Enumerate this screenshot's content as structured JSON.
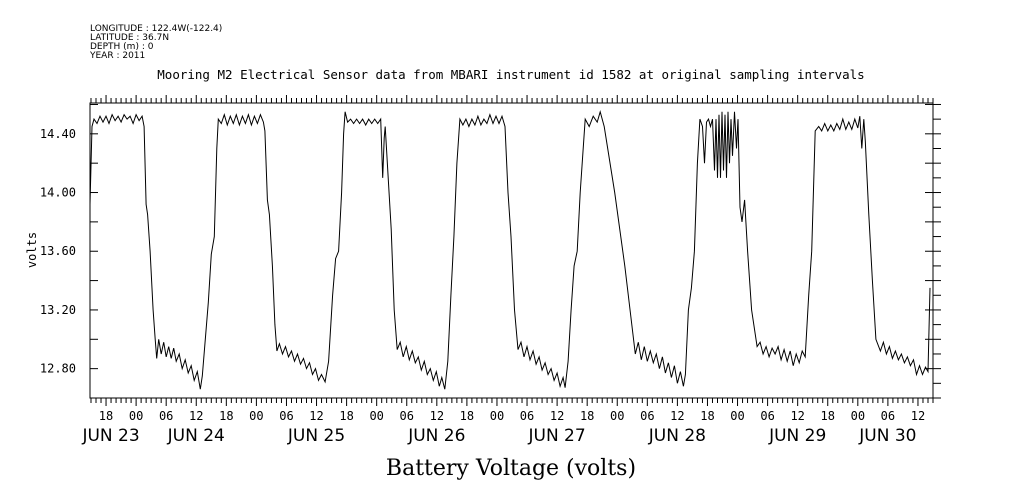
{
  "header": {
    "lines": [
      "LONGITUDE : 122.4W(-122.4)",
      "LATITUDE : 36.7N",
      "DEPTH (m) : 0",
      "YEAR : 2011"
    ]
  },
  "chart_data": {
    "type": "line",
    "title": "Mooring M2 Electrical Sensor data from MBARI instrument id 1582 at original sampling intervals",
    "xlabel": "Battery Voltage (volts)",
    "ylabel": "volts",
    "x_units": "hours since JUN 23 00:00 2011",
    "xlim": [
      14.8,
      183.0
    ],
    "ylim": [
      12.6,
      14.61
    ],
    "y_ticks": [
      12.8,
      13.2,
      13.6,
      14.0,
      14.4
    ],
    "y_tick_labels": [
      "12.80",
      "13.20",
      "13.60",
      "14.00",
      "14.40"
    ],
    "x_hour_labels": [
      "18",
      "00",
      "06",
      "12"
    ],
    "date_labels": [
      {
        "label": "JUN 23",
        "h": 19
      },
      {
        "label": "JUN 24",
        "h": 36
      },
      {
        "label": "JUN 25",
        "h": 60
      },
      {
        "label": "JUN 26",
        "h": 84
      },
      {
        "label": "JUN 27",
        "h": 108
      },
      {
        "label": "JUN 28",
        "h": 132
      },
      {
        "label": "JUN 29",
        "h": 156
      },
      {
        "label": "JUN 30",
        "h": 174
      }
    ],
    "series": [
      {
        "name": "Battery Voltage",
        "points": [
          [
            14.8,
            13.92
          ],
          [
            15.2,
            14.45
          ],
          [
            15.6,
            14.5
          ],
          [
            16.2,
            14.47
          ],
          [
            16.8,
            14.52
          ],
          [
            17.4,
            14.48
          ],
          [
            18,
            14.52
          ],
          [
            18.6,
            14.47
          ],
          [
            19.2,
            14.53
          ],
          [
            19.8,
            14.49
          ],
          [
            20.4,
            14.52
          ],
          [
            21,
            14.48
          ],
          [
            21.6,
            14.53
          ],
          [
            22.2,
            14.5
          ],
          [
            22.8,
            14.52
          ],
          [
            23.4,
            14.47
          ],
          [
            24,
            14.53
          ],
          [
            24.6,
            14.49
          ],
          [
            25.2,
            14.52
          ],
          [
            25.6,
            14.45
          ],
          [
            26.0,
            13.92
          ],
          [
            26.3,
            13.85
          ],
          [
            26.8,
            13.6
          ],
          [
            27.4,
            13.2
          ],
          [
            27.8,
            13.0
          ],
          [
            28.1,
            12.87
          ],
          [
            28.5,
            13.0
          ],
          [
            29,
            12.9
          ],
          [
            29.5,
            12.98
          ],
          [
            30,
            12.88
          ],
          [
            30.5,
            12.95
          ],
          [
            31,
            12.87
          ],
          [
            31.5,
            12.94
          ],
          [
            32,
            12.85
          ],
          [
            32.6,
            12.9
          ],
          [
            33.2,
            12.8
          ],
          [
            33.8,
            12.86
          ],
          [
            34.4,
            12.77
          ],
          [
            35,
            12.82
          ],
          [
            35.6,
            12.72
          ],
          [
            36.2,
            12.78
          ],
          [
            36.8,
            12.66
          ],
          [
            37.2,
            12.75
          ],
          [
            37.8,
            13.0
          ],
          [
            38.4,
            13.25
          ],
          [
            39.0,
            13.58
          ],
          [
            39.6,
            13.7
          ],
          [
            40.1,
            14.3
          ],
          [
            40.4,
            14.5
          ],
          [
            41,
            14.47
          ],
          [
            41.6,
            14.53
          ],
          [
            42.2,
            14.46
          ],
          [
            42.8,
            14.52
          ],
          [
            43.4,
            14.47
          ],
          [
            44,
            14.53
          ],
          [
            44.6,
            14.46
          ],
          [
            45.2,
            14.52
          ],
          [
            45.8,
            14.47
          ],
          [
            46.4,
            14.53
          ],
          [
            47,
            14.46
          ],
          [
            47.6,
            14.52
          ],
          [
            48.2,
            14.47
          ],
          [
            48.8,
            14.53
          ],
          [
            49.4,
            14.48
          ],
          [
            49.7,
            14.42
          ],
          [
            50.2,
            13.95
          ],
          [
            50.6,
            13.85
          ],
          [
            51.2,
            13.5
          ],
          [
            51.7,
            13.1
          ],
          [
            52.1,
            12.92
          ],
          [
            52.6,
            12.97
          ],
          [
            53.2,
            12.9
          ],
          [
            53.8,
            12.95
          ],
          [
            54.4,
            12.88
          ],
          [
            55,
            12.92
          ],
          [
            55.6,
            12.85
          ],
          [
            56.2,
            12.9
          ],
          [
            56.8,
            12.83
          ],
          [
            57.4,
            12.87
          ],
          [
            58,
            12.8
          ],
          [
            58.6,
            12.84
          ],
          [
            59.2,
            12.76
          ],
          [
            59.8,
            12.8
          ],
          [
            60.4,
            12.72
          ],
          [
            61,
            12.76
          ],
          [
            61.7,
            12.71
          ],
          [
            62.4,
            12.85
          ],
          [
            63.2,
            13.3
          ],
          [
            63.8,
            13.55
          ],
          [
            64.4,
            13.6
          ],
          [
            65,
            14.0
          ],
          [
            65.4,
            14.4
          ],
          [
            65.7,
            14.55
          ],
          [
            66.2,
            14.48
          ],
          [
            66.8,
            14.5
          ],
          [
            67.4,
            14.47
          ],
          [
            68,
            14.5
          ],
          [
            68.6,
            14.47
          ],
          [
            69.2,
            14.5
          ],
          [
            69.8,
            14.46
          ],
          [
            70.4,
            14.5
          ],
          [
            71,
            14.47
          ],
          [
            71.6,
            14.5
          ],
          [
            72.2,
            14.47
          ],
          [
            72.8,
            14.5
          ],
          [
            73.2,
            14.1
          ],
          [
            73.5,
            14.37
          ],
          [
            73.7,
            14.45
          ],
          [
            74.3,
            14.1
          ],
          [
            74.9,
            13.75
          ],
          [
            75.5,
            13.2
          ],
          [
            76.1,
            12.93
          ],
          [
            76.7,
            12.98
          ],
          [
            77.3,
            12.88
          ],
          [
            77.9,
            12.95
          ],
          [
            78.5,
            12.86
          ],
          [
            79.1,
            12.92
          ],
          [
            79.7,
            12.84
          ],
          [
            80.3,
            12.88
          ],
          [
            80.9,
            12.79
          ],
          [
            81.5,
            12.85
          ],
          [
            82.1,
            12.76
          ],
          [
            82.7,
            12.8
          ],
          [
            83.3,
            12.72
          ],
          [
            83.9,
            12.78
          ],
          [
            84.5,
            12.68
          ],
          [
            85.0,
            12.74
          ],
          [
            85.6,
            12.66
          ],
          [
            86.2,
            12.85
          ],
          [
            86.8,
            13.3
          ],
          [
            87.4,
            13.7
          ],
          [
            88.0,
            14.2
          ],
          [
            88.6,
            14.5
          ],
          [
            89.2,
            14.46
          ],
          [
            89.8,
            14.5
          ],
          [
            90.4,
            14.45
          ],
          [
            91,
            14.5
          ],
          [
            91.6,
            14.46
          ],
          [
            92.2,
            14.52
          ],
          [
            92.8,
            14.46
          ],
          [
            93.4,
            14.5
          ],
          [
            94,
            14.47
          ],
          [
            94.6,
            14.53
          ],
          [
            95.2,
            14.47
          ],
          [
            95.8,
            14.52
          ],
          [
            96.4,
            14.47
          ],
          [
            97,
            14.52
          ],
          [
            97.6,
            14.45
          ],
          [
            98.2,
            14.0
          ],
          [
            98.8,
            13.7
          ],
          [
            99.5,
            13.2
          ],
          [
            100.2,
            12.93
          ],
          [
            100.8,
            12.98
          ],
          [
            101.4,
            12.88
          ],
          [
            102,
            12.95
          ],
          [
            102.6,
            12.86
          ],
          [
            103.2,
            12.92
          ],
          [
            103.8,
            12.83
          ],
          [
            104.4,
            12.88
          ],
          [
            105,
            12.79
          ],
          [
            105.6,
            12.84
          ],
          [
            106.2,
            12.76
          ],
          [
            106.8,
            12.8
          ],
          [
            107.4,
            12.72
          ],
          [
            108,
            12.77
          ],
          [
            108.6,
            12.68
          ],
          [
            109.2,
            12.74
          ],
          [
            109.6,
            12.67
          ],
          [
            110.2,
            12.85
          ],
          [
            110.8,
            13.2
          ],
          [
            111.4,
            13.5
          ],
          [
            112.0,
            13.6
          ],
          [
            112.6,
            14.0
          ],
          [
            113.6,
            14.5
          ],
          [
            114.4,
            14.45
          ],
          [
            115.2,
            14.52
          ],
          [
            116,
            14.48
          ],
          [
            116.6,
            14.55
          ],
          [
            117.4,
            14.45
          ],
          [
            119.5,
            14.0
          ],
          [
            121.5,
            13.5
          ],
          [
            123.6,
            12.9
          ],
          [
            124.2,
            12.98
          ],
          [
            124.8,
            12.86
          ],
          [
            125.4,
            12.95
          ],
          [
            126,
            12.85
          ],
          [
            126.6,
            12.92
          ],
          [
            127.2,
            12.84
          ],
          [
            127.8,
            12.9
          ],
          [
            128.4,
            12.8
          ],
          [
            129,
            12.88
          ],
          [
            129.6,
            12.77
          ],
          [
            130.2,
            12.84
          ],
          [
            130.8,
            12.74
          ],
          [
            131.4,
            12.82
          ],
          [
            132,
            12.7
          ],
          [
            132.6,
            12.78
          ],
          [
            133.2,
            12.68
          ],
          [
            133.6,
            12.76
          ],
          [
            134.2,
            13.2
          ],
          [
            134.8,
            13.35
          ],
          [
            135.4,
            13.6
          ],
          [
            136,
            14.2
          ],
          [
            136.5,
            14.5
          ],
          [
            137,
            14.45
          ],
          [
            137.4,
            14.2
          ],
          [
            137.8,
            14.48
          ],
          [
            138.2,
            14.5
          ],
          [
            138.6,
            14.45
          ],
          [
            139,
            14.5
          ],
          [
            139.4,
            14.15
          ],
          [
            139.7,
            14.5
          ],
          [
            140,
            14.1
          ],
          [
            140.3,
            14.53
          ],
          [
            140.6,
            14.1
          ],
          [
            140.9,
            14.55
          ],
          [
            141.2,
            14.15
          ],
          [
            141.5,
            14.53
          ],
          [
            141.8,
            14.1
          ],
          [
            142.1,
            14.55
          ],
          [
            142.4,
            14.2
          ],
          [
            142.7,
            14.5
          ],
          [
            143.0,
            14.25
          ],
          [
            143.4,
            14.55
          ],
          [
            143.8,
            14.3
          ],
          [
            144.1,
            14.5
          ],
          [
            144.5,
            13.9
          ],
          [
            144.9,
            13.8
          ],
          [
            145.4,
            13.95
          ],
          [
            146.0,
            13.6
          ],
          [
            146.8,
            13.2
          ],
          [
            147.9,
            12.95
          ],
          [
            148.5,
            12.98
          ],
          [
            149.1,
            12.9
          ],
          [
            149.7,
            12.95
          ],
          [
            150.3,
            12.88
          ],
          [
            150.9,
            12.94
          ],
          [
            151.5,
            12.9
          ],
          [
            152.1,
            12.95
          ],
          [
            152.7,
            12.86
          ],
          [
            153.3,
            12.93
          ],
          [
            153.9,
            12.85
          ],
          [
            154.5,
            12.92
          ],
          [
            155.1,
            12.82
          ],
          [
            155.7,
            12.9
          ],
          [
            156.3,
            12.84
          ],
          [
            156.9,
            12.92
          ],
          [
            157.5,
            12.88
          ],
          [
            158.2,
            13.3
          ],
          [
            158.8,
            13.6
          ],
          [
            159.5,
            14.42
          ],
          [
            160.2,
            14.45
          ],
          [
            160.8,
            14.42
          ],
          [
            161.4,
            14.47
          ],
          [
            162,
            14.42
          ],
          [
            162.6,
            14.46
          ],
          [
            163.2,
            14.42
          ],
          [
            163.8,
            14.47
          ],
          [
            164.4,
            14.43
          ],
          [
            165,
            14.5
          ],
          [
            165.6,
            14.43
          ],
          [
            166.2,
            14.48
          ],
          [
            166.8,
            14.43
          ],
          [
            167.4,
            14.5
          ],
          [
            168,
            14.44
          ],
          [
            168.4,
            14.52
          ],
          [
            168.8,
            14.3
          ],
          [
            169.2,
            14.5
          ],
          [
            169.5,
            14.35
          ],
          [
            170.2,
            13.85
          ],
          [
            170.9,
            13.4
          ],
          [
            171.6,
            13.0
          ],
          [
            172.5,
            12.92
          ],
          [
            173.1,
            12.98
          ],
          [
            173.7,
            12.9
          ],
          [
            174.3,
            12.95
          ],
          [
            174.9,
            12.87
          ],
          [
            175.5,
            12.92
          ],
          [
            176.1,
            12.86
          ],
          [
            176.7,
            12.9
          ],
          [
            177.3,
            12.84
          ],
          [
            177.9,
            12.88
          ],
          [
            178.5,
            12.82
          ],
          [
            179.1,
            12.86
          ],
          [
            179.7,
            12.76
          ],
          [
            180.3,
            12.82
          ],
          [
            180.9,
            12.76
          ],
          [
            181.5,
            12.81
          ],
          [
            182.0,
            12.78
          ],
          [
            182.4,
            13.35
          ]
        ]
      }
    ]
  }
}
